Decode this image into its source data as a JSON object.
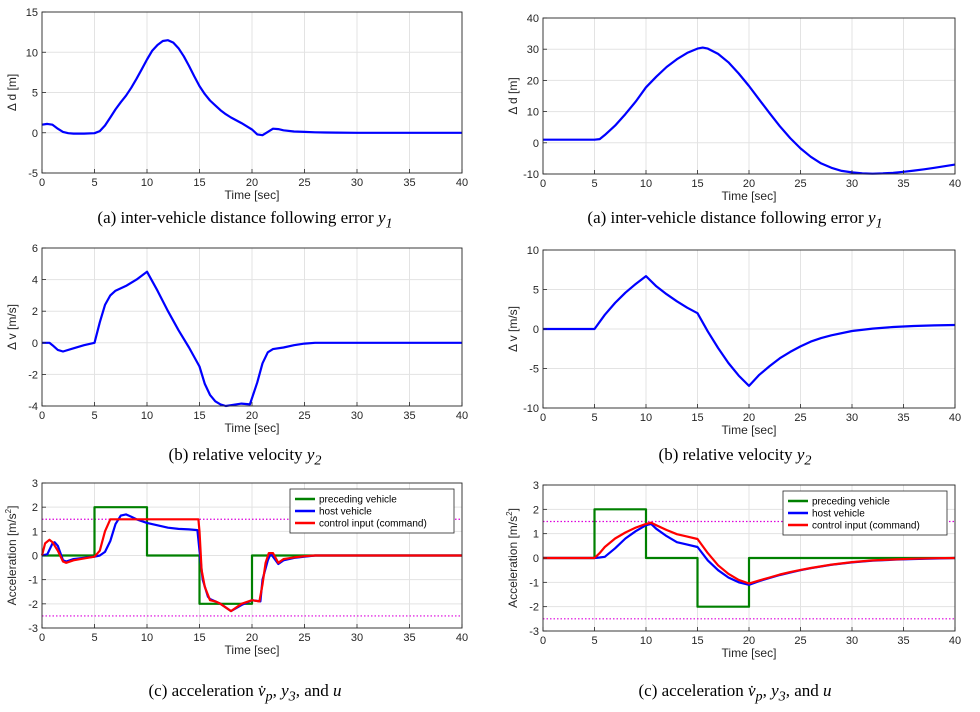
{
  "chart_data": [
    {
      "id": "left-distance",
      "type": "line",
      "xlabel": "Time [sec]",
      "ylabel": "Δ d [m]",
      "xlim": [
        0,
        40
      ],
      "ylim": [
        -5,
        15
      ],
      "xticks": [
        0,
        5,
        10,
        15,
        20,
        25,
        30,
        35,
        40
      ],
      "yticks": [
        -5,
        0,
        5,
        10,
        15
      ],
      "grid": true,
      "caption": "(a) inter-vehicle distance following error",
      "caption_var": "y",
      "caption_sub": "1",
      "series": [
        {
          "color": "#0000ff",
          "x": [
            0,
            0.5,
            1,
            1.5,
            2,
            2.5,
            3,
            4,
            5,
            5.5,
            6,
            6.5,
            7,
            7.5,
            8,
            8.5,
            9,
            9.5,
            10,
            10.5,
            11,
            11.5,
            12,
            12.5,
            13,
            13.5,
            14,
            14.5,
            15,
            15.5,
            16,
            16.5,
            17,
            17.5,
            18,
            19,
            20,
            20.5,
            21,
            21.5,
            22,
            22.5,
            23,
            24,
            25,
            26,
            27,
            28,
            30,
            35,
            40
          ],
          "y": [
            1.0,
            1.1,
            1.0,
            0.5,
            0.1,
            -0.05,
            -0.1,
            -0.1,
            -0.05,
            0.2,
            0.9,
            1.9,
            2.9,
            3.8,
            4.6,
            5.6,
            6.7,
            7.9,
            9.1,
            10.2,
            10.9,
            11.4,
            11.5,
            11.2,
            10.5,
            9.5,
            8.3,
            7.0,
            5.8,
            4.8,
            4.0,
            3.4,
            2.8,
            2.3,
            1.9,
            1.2,
            0.4,
            -0.2,
            -0.3,
            0.1,
            0.5,
            0.45,
            0.3,
            0.15,
            0.1,
            0.05,
            0.03,
            0.02,
            0.0,
            0.0,
            0.0
          ]
        }
      ]
    },
    {
      "id": "right-distance",
      "type": "line",
      "xlabel": "Time [sec]",
      "ylabel": "Δ d [m]",
      "xlim": [
        0,
        40
      ],
      "ylim": [
        -10,
        40
      ],
      "xticks": [
        0,
        5,
        10,
        15,
        20,
        25,
        30,
        35,
        40
      ],
      "yticks": [
        -10,
        0,
        10,
        20,
        30,
        40
      ],
      "grid": true,
      "caption": "(a) inter-vehicle distance following error",
      "caption_var": "y",
      "caption_sub": "1",
      "series": [
        {
          "color": "#0000ff",
          "x": [
            0,
            2,
            4,
            5,
            5.5,
            6,
            7,
            8,
            9,
            10,
            11,
            12,
            13,
            14,
            15,
            15.5,
            16,
            17,
            18,
            19,
            20,
            21,
            22,
            23,
            24,
            25,
            26,
            27,
            28,
            29,
            30,
            31,
            32,
            33,
            34,
            35,
            36,
            37,
            38,
            39,
            40
          ],
          "y": [
            1,
            1,
            1,
            1,
            1.2,
            2.5,
            5.5,
            9.2,
            13.2,
            17.8,
            21.2,
            24.3,
            26.8,
            28.8,
            30.2,
            30.5,
            30.2,
            28.5,
            25.8,
            22.2,
            18.2,
            13.8,
            9.5,
            5.3,
            1.5,
            -1.8,
            -4.5,
            -6.6,
            -8.0,
            -9.0,
            -9.5,
            -9.8,
            -9.9,
            -9.8,
            -9.6,
            -9.3,
            -8.9,
            -8.5,
            -8.0,
            -7.5,
            -7.0
          ]
        }
      ]
    },
    {
      "id": "left-velocity",
      "type": "line",
      "xlabel": "Time [sec]",
      "ylabel": "Δ v [m/s]",
      "xlim": [
        0,
        40
      ],
      "ylim": [
        -4,
        6
      ],
      "xticks": [
        0,
        5,
        10,
        15,
        20,
        25,
        30,
        35,
        40
      ],
      "yticks": [
        -4,
        -2,
        0,
        2,
        4,
        6
      ],
      "grid": true,
      "caption": "(b) relative velocity",
      "caption_var": "y",
      "caption_sub": "2",
      "series": [
        {
          "color": "#0000ff",
          "x": [
            0,
            0.7,
            1,
            1.5,
            2,
            3,
            4,
            5,
            5.5,
            6,
            6.5,
            7,
            8,
            9,
            10,
            11,
            12,
            13,
            14,
            15,
            15.5,
            16,
            16.5,
            17,
            17.5,
            18,
            19,
            19.8,
            20.5,
            21,
            21.5,
            22,
            23,
            24,
            25,
            26,
            27,
            28,
            30,
            35,
            40
          ],
          "y": [
            0,
            0,
            -0.15,
            -0.45,
            -0.55,
            -0.35,
            -0.15,
            0,
            1.3,
            2.4,
            3.0,
            3.3,
            3.6,
            4.0,
            4.5,
            3.3,
            2.0,
            0.8,
            -0.3,
            -1.5,
            -2.6,
            -3.3,
            -3.7,
            -3.9,
            -4.0,
            -3.95,
            -3.85,
            -3.9,
            -2.5,
            -1.3,
            -0.6,
            -0.4,
            -0.3,
            -0.15,
            -0.05,
            0,
            0,
            0,
            0,
            0,
            0
          ]
        }
      ]
    },
    {
      "id": "right-velocity",
      "type": "line",
      "xlabel": "Time [sec]",
      "ylabel": "Δ v [m/s]",
      "xlim": [
        0,
        40
      ],
      "ylim": [
        -10,
        10
      ],
      "xticks": [
        0,
        5,
        10,
        15,
        20,
        25,
        30,
        35,
        40
      ],
      "yticks": [
        -10,
        -5,
        0,
        5,
        10
      ],
      "grid": true,
      "caption": "(b) relative velocity",
      "caption_var": "y",
      "caption_sub": "2",
      "series": [
        {
          "color": "#0000ff",
          "x": [
            0,
            5,
            6,
            7,
            8,
            9,
            10,
            11,
            12,
            13,
            14,
            15,
            16,
            17,
            18,
            19,
            20,
            21,
            22,
            23,
            24,
            25,
            26,
            27,
            28,
            30,
            32,
            34,
            36,
            38,
            40
          ],
          "y": [
            0,
            0,
            1.8,
            3.3,
            4.6,
            5.7,
            6.7,
            5.4,
            4.4,
            3.5,
            2.7,
            2.0,
            -0.3,
            -2.4,
            -4.3,
            -5.9,
            -7.2,
            -5.8,
            -4.7,
            -3.7,
            -2.9,
            -2.2,
            -1.6,
            -1.15,
            -0.8,
            -0.25,
            0.05,
            0.25,
            0.38,
            0.45,
            0.5
          ]
        }
      ]
    },
    {
      "id": "left-acceleration",
      "type": "line",
      "xlabel": "Time [sec]",
      "ylabel": "Acceleration [m/s",
      "ylabel_sup": "2",
      "ylabel_end": "]",
      "xlim": [
        0,
        40
      ],
      "ylim": [
        -3,
        3
      ],
      "xticks": [
        0,
        5,
        10,
        15,
        20,
        25,
        30,
        35,
        40
      ],
      "yticks": [
        -3,
        -2,
        -1,
        0,
        1,
        2,
        3
      ],
      "grid": true,
      "hlines": [
        {
          "y": 1.5,
          "color": "#dd00dd"
        },
        {
          "y": -2.5,
          "color": "#dd00dd"
        }
      ],
      "legend": "top-right",
      "caption": "(c) acceleration",
      "caption_var": "v̇",
      "caption_sub": "p",
      "caption_tail_var1": "y",
      "caption_tail_sub": "3",
      "caption_tail_mid": ", and",
      "caption_tail_var2": "u",
      "series": [
        {
          "name": "preceding vehicle",
          "color": "#008000",
          "x": [
            0,
            5,
            5,
            10,
            10,
            15,
            15,
            20,
            20,
            40
          ],
          "y": [
            0,
            0,
            2,
            2,
            0,
            0,
            -2,
            -2,
            0,
            0
          ]
        },
        {
          "name": "host vehicle",
          "color": "#0000ff",
          "x": [
            0,
            0.5,
            1,
            1.2,
            1.5,
            2,
            2.3,
            3,
            4,
            5,
            5.5,
            6,
            6.5,
            7,
            7.5,
            8,
            8.5,
            9,
            10,
            11,
            12,
            13,
            14,
            14.8,
            15,
            15.3,
            15.8,
            16,
            17,
            18,
            19,
            20,
            20.8,
            21,
            21.5,
            21.8,
            22,
            22.5,
            23,
            24,
            25,
            26,
            28,
            40
          ],
          "y": [
            0,
            0.05,
            0.5,
            0.55,
            0.4,
            -0.2,
            -0.25,
            -0.15,
            -0.1,
            -0.05,
            0.0,
            0.15,
            0.6,
            1.3,
            1.65,
            1.7,
            1.6,
            1.5,
            1.35,
            1.25,
            1.15,
            1.1,
            1.08,
            1.05,
            0.2,
            -1.0,
            -1.7,
            -1.8,
            -2.0,
            -2.3,
            -2.05,
            -1.85,
            -1.9,
            -1.0,
            -0.2,
            0.1,
            -0.05,
            -0.35,
            -0.2,
            -0.1,
            -0.05,
            0,
            0,
            0
          ]
        },
        {
          "name": "control input (command)",
          "color": "#ff0000",
          "x": [
            0,
            0.3,
            0.7,
            1,
            1.5,
            2,
            2.3,
            3,
            4,
            5,
            5.5,
            6,
            6.5,
            7,
            8,
            9,
            10,
            11,
            12,
            13,
            14,
            14.9,
            15,
            15.2,
            15.5,
            16,
            16.5,
            17,
            18,
            19,
            20,
            20.7,
            21,
            21.3,
            21.6,
            22,
            22.5,
            23,
            24,
            25,
            26,
            28,
            40
          ],
          "y": [
            0,
            0.5,
            0.65,
            0.55,
            0.2,
            -0.25,
            -0.3,
            -0.2,
            -0.12,
            -0.05,
            0.2,
            1.0,
            1.5,
            1.5,
            1.5,
            1.5,
            1.5,
            1.5,
            1.5,
            1.5,
            1.5,
            1.5,
            1.0,
            -0.6,
            -1.3,
            -1.85,
            -1.9,
            -2.0,
            -2.3,
            -2.0,
            -1.85,
            -1.9,
            -1.2,
            -0.3,
            0.1,
            0.1,
            -0.3,
            -0.15,
            -0.08,
            -0.03,
            0,
            0,
            0
          ]
        }
      ]
    },
    {
      "id": "right-acceleration",
      "type": "line",
      "xlabel": "Time [sec]",
      "ylabel": "Acceleration [m/s",
      "ylabel_sup": "2",
      "ylabel_end": "]",
      "xlim": [
        0,
        40
      ],
      "ylim": [
        -3,
        3
      ],
      "xticks": [
        0,
        5,
        10,
        15,
        20,
        25,
        30,
        35,
        40
      ],
      "yticks": [
        -3,
        -2,
        -1,
        0,
        1,
        2,
        3
      ],
      "grid": true,
      "hlines": [
        {
          "y": 1.5,
          "color": "#dd00dd"
        },
        {
          "y": -2.5,
          "color": "#dd00dd"
        }
      ],
      "legend": "top-right",
      "caption": "(c) acceleration",
      "caption_var": "v̇",
      "caption_sub": "p",
      "caption_tail_var1": "y",
      "caption_tail_sub": "3",
      "caption_tail_mid": ", and",
      "caption_tail_var2": "u",
      "series": [
        {
          "name": "preceding vehicle",
          "color": "#008000",
          "x": [
            0,
            5,
            5,
            10,
            10,
            15,
            15,
            20,
            20,
            40
          ],
          "y": [
            0,
            0,
            2,
            2,
            0,
            0,
            -2,
            -2,
            0,
            0
          ]
        },
        {
          "name": "host vehicle",
          "color": "#0000ff",
          "x": [
            0,
            5,
            5.5,
            6,
            7,
            8,
            9,
            10,
            10.5,
            11,
            12,
            13,
            14,
            15,
            16,
            17,
            18,
            19,
            20,
            21,
            22,
            23,
            24,
            25,
            26,
            28,
            30,
            32,
            34,
            36,
            38,
            40
          ],
          "y": [
            0,
            0,
            0.02,
            0.05,
            0.4,
            0.8,
            1.1,
            1.35,
            1.4,
            1.2,
            0.9,
            0.65,
            0.55,
            0.45,
            -0.1,
            -0.5,
            -0.8,
            -1.0,
            -1.1,
            -0.95,
            -0.82,
            -0.7,
            -0.6,
            -0.5,
            -0.42,
            -0.28,
            -0.18,
            -0.11,
            -0.07,
            -0.04,
            -0.02,
            0
          ]
        },
        {
          "name": "control input (command)",
          "color": "#ff0000",
          "x": [
            0,
            5,
            5.5,
            6,
            7,
            8,
            9,
            10,
            10.5,
            11,
            12,
            13,
            14,
            15,
            16,
            17,
            18,
            19,
            20,
            21,
            22,
            23,
            24,
            25,
            26,
            28,
            30,
            32,
            34,
            36,
            38,
            40
          ],
          "y": [
            0,
            0,
            0.2,
            0.45,
            0.8,
            1.05,
            1.25,
            1.4,
            1.45,
            1.35,
            1.15,
            0.98,
            0.88,
            0.78,
            0.2,
            -0.3,
            -0.65,
            -0.9,
            -1.05,
            -0.92,
            -0.8,
            -0.68,
            -0.58,
            -0.49,
            -0.41,
            -0.27,
            -0.17,
            -0.1,
            -0.06,
            -0.03,
            -0.01,
            0
          ]
        }
      ]
    }
  ]
}
